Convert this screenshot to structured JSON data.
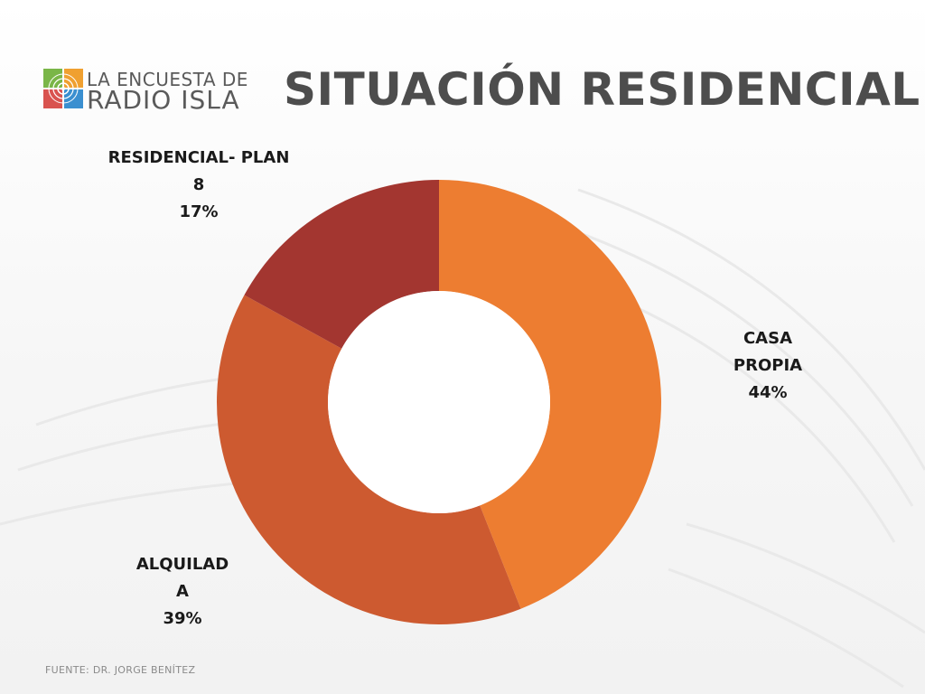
{
  "logo": {
    "line1": "LA ENCUESTA DE",
    "line2": "RADIO ISLA",
    "colors": [
      "#7ab648",
      "#f0a030",
      "#d9534f",
      "#3a8fd0"
    ]
  },
  "title": "SITUACIÓN RESIDENCIAL",
  "chart_data": {
    "type": "pie",
    "donut": true,
    "title": "SITUACIÓN RESIDENCIAL",
    "slices": [
      {
        "name": "CASA PROPIA",
        "percent": 44,
        "color": "#ed7d31",
        "label_lines": [
          "CASA",
          "PROPIA",
          "44%"
        ]
      },
      {
        "name": "ALQUILADA",
        "percent": 39,
        "color": "#cd5a30",
        "label_lines": [
          "ALQUILAD",
          "A",
          "39%"
        ]
      },
      {
        "name": "RESIDENCIAL- PLAN 8",
        "percent": 17,
        "color": "#a33630",
        "label_lines": [
          "RESIDENCIAL- PLAN",
          "8",
          "17%"
        ]
      }
    ],
    "start_angle_deg": 0,
    "direction": "clockwise"
  },
  "footer": {
    "source": "FUENTE: DR. JORGE BENÍTEZ"
  }
}
